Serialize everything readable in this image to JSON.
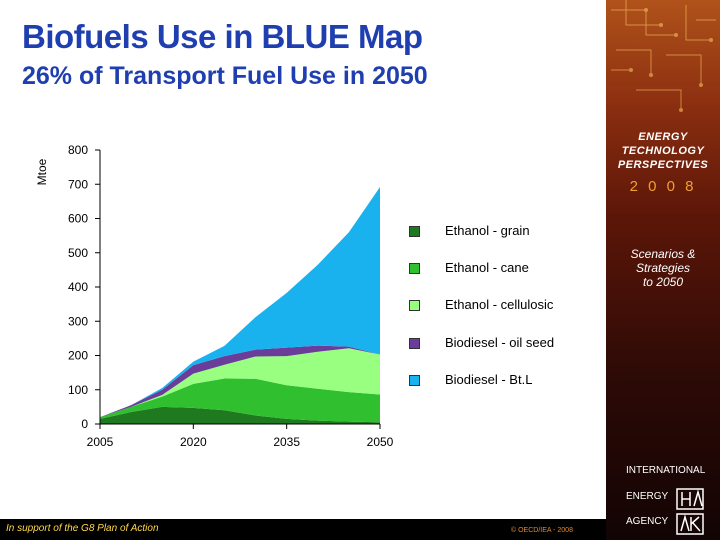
{
  "slide": {
    "title": "Biofuels Use in BLUE Map",
    "subtitle": "26% of Transport Fuel Use in 2050"
  },
  "sidebar": {
    "etp_lines": [
      "ENERGY",
      "TECHNOLOGY",
      "PERSPECTIVES"
    ],
    "etp_year": "2 0 0 8",
    "scenarios_lines": [
      "Scenarios &",
      "Strategies",
      "to 2050"
    ],
    "iea_lines": [
      "INTERNATIONAL",
      "ENERGY",
      "AGENCY"
    ]
  },
  "footer": {
    "g8": "In support of the G8 Plan of Action",
    "copyright": "© OECD/IEA - 2008"
  },
  "chart_data": {
    "type": "area",
    "stacked": true,
    "ylabel": "Mtoe",
    "ylim": [
      0,
      800
    ],
    "yticks": [
      0,
      100,
      200,
      300,
      400,
      500,
      600,
      700,
      800
    ],
    "xticks": [
      "2005",
      "2020",
      "2035",
      "2050"
    ],
    "xlim": [
      2005,
      2050
    ],
    "x": [
      2005,
      2010,
      2015,
      2020,
      2025,
      2030,
      2035,
      2040,
      2045,
      2050
    ],
    "series": [
      {
        "name": "Ethanol - grain",
        "color": "#1f7a1f",
        "values": [
          15,
          35,
          50,
          47,
          40,
          25,
          15,
          10,
          7,
          5
        ]
      },
      {
        "name": "Ethanol - cane",
        "color": "#2fbf2f",
        "values": [
          5,
          15,
          30,
          70,
          93,
          107,
          98,
          93,
          86,
          81
        ]
      },
      {
        "name": "Ethanol - cellulosic",
        "color": "#99ff80",
        "values": [
          0,
          0,
          5,
          30,
          40,
          65,
          85,
          108,
          128,
          117
        ]
      },
      {
        "name": "Biodiesel - oil seed",
        "color": "#6a3d9a",
        "values": [
          0,
          5,
          15,
          25,
          25,
          20,
          25,
          18,
          5,
          0
        ]
      },
      {
        "name": "Biodiesel - Bt.L",
        "color": "#1ab2ee",
        "values": [
          0,
          0,
          5,
          10,
          30,
          95,
          160,
          236,
          334,
          489
        ]
      }
    ],
    "legend_position": "right"
  }
}
